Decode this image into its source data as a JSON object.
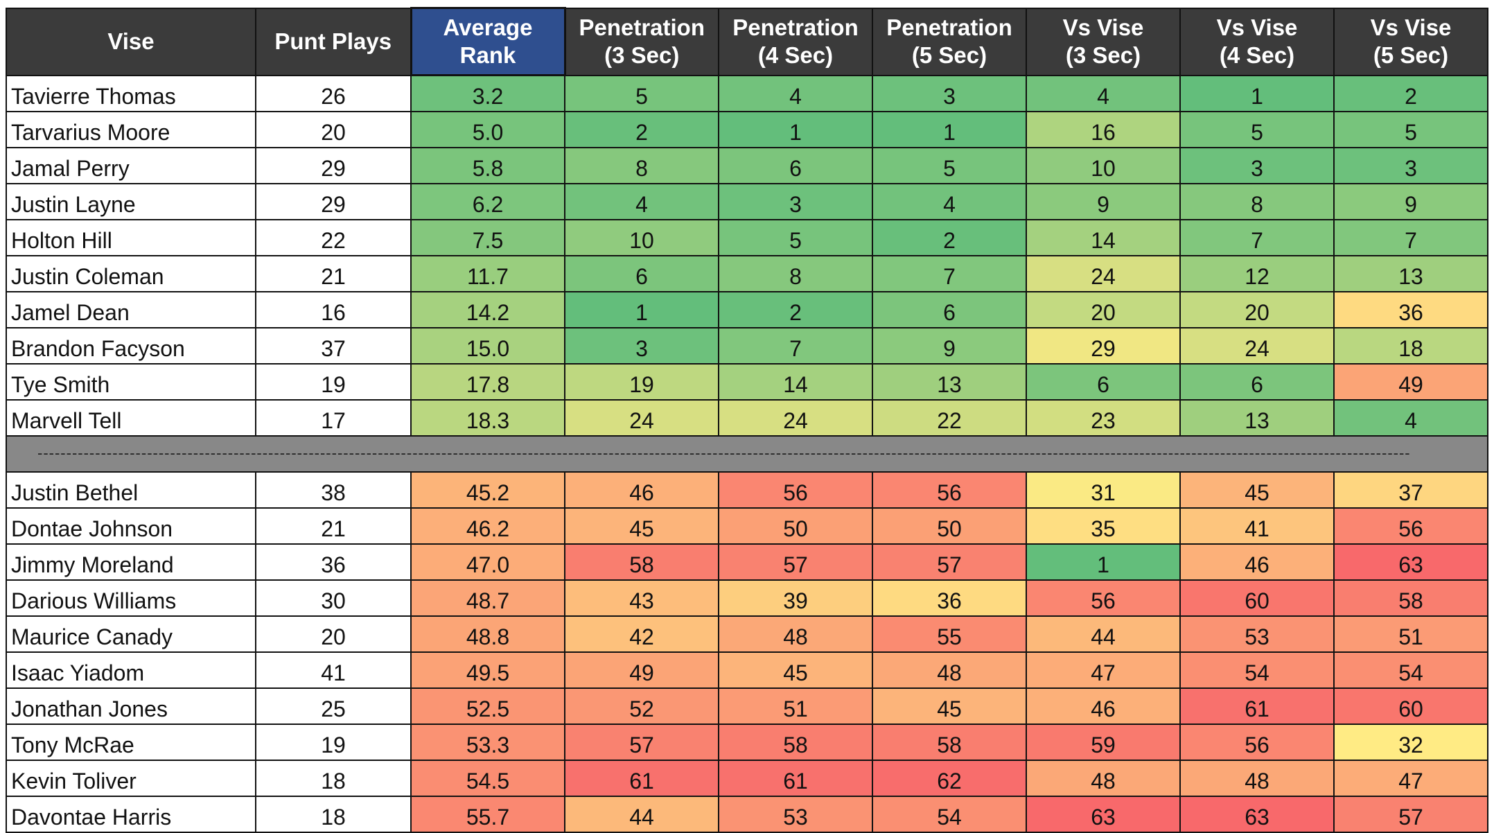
{
  "chart_data": {
    "type": "table",
    "columns": [
      "Vise",
      "Punt Plays",
      "Average Rank",
      "Penetration (3 Sec)",
      "Penetration (4 Sec)",
      "Penetration (5 Sec)",
      "Vs Vise (3 Sec)",
      "Vs Vise (4 Sec)",
      "Vs Vise (5 Sec)"
    ],
    "header_lines": [
      [
        "Vise"
      ],
      [
        "Punt Plays"
      ],
      [
        "Average",
        "Rank"
      ],
      [
        "Penetration",
        "(3 Sec)"
      ],
      [
        "Penetration",
        "(4 Sec)"
      ],
      [
        "Penetration",
        "(5 Sec)"
      ],
      [
        "Vs Vise",
        "(3 Sec)"
      ],
      [
        "Vs Vise",
        "(4 Sec)"
      ],
      [
        "Vs Vise",
        "(5 Sec)"
      ]
    ],
    "color_scale": {
      "low": "#63be7b",
      "mid": "#ffeb84",
      "high": "#f8696b",
      "domain": [
        1,
        32,
        63
      ]
    },
    "separator_text": "----------------------------------------------------------------------------------------------------------------------------------------------------------------------------------------------------------------------------------------------",
    "top_group": [
      {
        "name": "Tavierre Thomas",
        "plays": "26",
        "avg": "3.2",
        "values": [
          "5",
          "4",
          "3",
          "4",
          "1",
          "2"
        ]
      },
      {
        "name": "Tarvarius Moore",
        "plays": "20",
        "avg": "5.0",
        "values": [
          "2",
          "1",
          "1",
          "16",
          "5",
          "5"
        ]
      },
      {
        "name": "Jamal Perry",
        "plays": "29",
        "avg": "5.8",
        "values": [
          "8",
          "6",
          "5",
          "10",
          "3",
          "3"
        ]
      },
      {
        "name": "Justin Layne",
        "plays": "29",
        "avg": "6.2",
        "values": [
          "4",
          "3",
          "4",
          "9",
          "8",
          "9"
        ]
      },
      {
        "name": "Holton Hill",
        "plays": "22",
        "avg": "7.5",
        "values": [
          "10",
          "5",
          "2",
          "14",
          "7",
          "7"
        ]
      },
      {
        "name": "Justin Coleman",
        "plays": "21",
        "avg": "11.7",
        "values": [
          "6",
          "8",
          "7",
          "24",
          "12",
          "13"
        ]
      },
      {
        "name": "Jamel Dean",
        "plays": "16",
        "avg": "14.2",
        "values": [
          "1",
          "2",
          "6",
          "20",
          "20",
          "36"
        ]
      },
      {
        "name": "Brandon Facyson",
        "plays": "37",
        "avg": "15.0",
        "values": [
          "3",
          "7",
          "9",
          "29",
          "24",
          "18"
        ]
      },
      {
        "name": "Tye Smith",
        "plays": "19",
        "avg": "17.8",
        "values": [
          "19",
          "14",
          "13",
          "6",
          "6",
          "49"
        ]
      },
      {
        "name": "Marvell Tell",
        "plays": "17",
        "avg": "18.3",
        "values": [
          "24",
          "24",
          "22",
          "23",
          "13",
          "4"
        ]
      }
    ],
    "bottom_group": [
      {
        "name": "Justin Bethel",
        "plays": "38",
        "avg": "45.2",
        "values": [
          "46",
          "56",
          "56",
          "31",
          "45",
          "37"
        ]
      },
      {
        "name": "Dontae Johnson",
        "plays": "21",
        "avg": "46.2",
        "values": [
          "45",
          "50",
          "50",
          "35",
          "41",
          "56"
        ]
      },
      {
        "name": "Jimmy Moreland",
        "plays": "36",
        "avg": "47.0",
        "values": [
          "58",
          "57",
          "57",
          "1",
          "46",
          "63"
        ]
      },
      {
        "name": "Darious Williams",
        "plays": "30",
        "avg": "48.7",
        "values": [
          "43",
          "39",
          "36",
          "56",
          "60",
          "58"
        ]
      },
      {
        "name": "Maurice Canady",
        "plays": "20",
        "avg": "48.8",
        "values": [
          "42",
          "48",
          "55",
          "44",
          "53",
          "51"
        ]
      },
      {
        "name": "Isaac Yiadom",
        "plays": "41",
        "avg": "49.5",
        "values": [
          "49",
          "45",
          "48",
          "47",
          "54",
          "54"
        ]
      },
      {
        "name": "Jonathan Jones",
        "plays": "25",
        "avg": "52.5",
        "values": [
          "52",
          "51",
          "45",
          "46",
          "61",
          "60"
        ]
      },
      {
        "name": "Tony McRae",
        "plays": "19",
        "avg": "53.3",
        "values": [
          "57",
          "58",
          "58",
          "59",
          "56",
          "32"
        ]
      },
      {
        "name": "Kevin Toliver",
        "plays": "18",
        "avg": "54.5",
        "values": [
          "61",
          "61",
          "62",
          "48",
          "48",
          "47"
        ]
      },
      {
        "name": "Davontae Harris",
        "plays": "18",
        "avg": "55.7",
        "values": [
          "44",
          "53",
          "54",
          "63",
          "63",
          "57"
        ]
      }
    ]
  }
}
